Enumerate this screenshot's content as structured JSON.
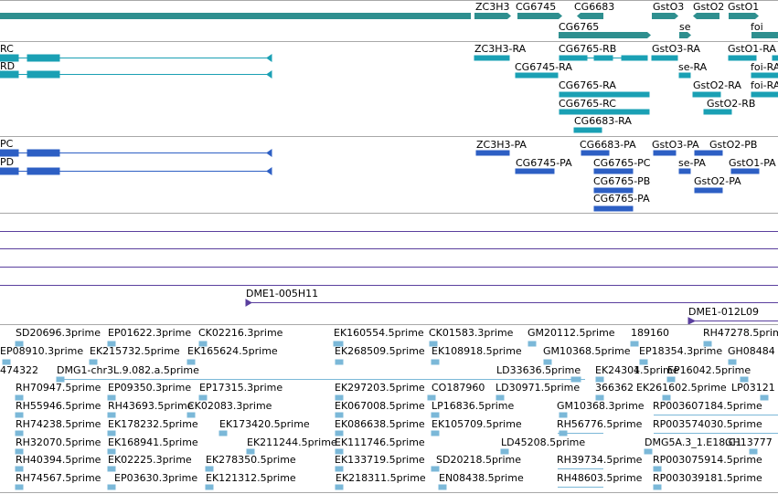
{
  "colors": {
    "gene": "#2e8f8f",
    "transcript_rna": "#1aa0b4",
    "protein": "#2d5fc4",
    "bac": "#5a3f9e",
    "est": "#7bb8d8",
    "divider": "#a8a8a8"
  },
  "gene_track": {
    "labels": [
      "ZC3H3",
      "CG6745",
      "CG6683",
      "GstO3",
      "GstO2",
      "GstO1",
      "CG6765",
      "se",
      "foi"
    ]
  },
  "rna_track": {
    "left_edge_labels": [
      "RC",
      "RD"
    ],
    "labels": [
      "ZC3H3-RA",
      "CG6765-RB",
      "GstO3-RA",
      "GstO1-RA",
      "CG6745-RA",
      "se-RA",
      "foi-RA",
      "CG6765-RA",
      "GstO2-RA",
      "foi-RA",
      "CG6765-RC",
      "GstO2-RB",
      "CG6683-RA"
    ]
  },
  "protein_track": {
    "left_edge_labels": [
      "PC",
      "PD"
    ],
    "labels": [
      "ZC3H3-PA",
      "CG6683-PA",
      "GstO3-PA",
      "GstO2-PB",
      "CG6745-PA",
      "CG6765-PC",
      "se-PA",
      "GstO1-PA",
      "CG6765-PB",
      "GstO2-PA",
      "CG6765-PA"
    ]
  },
  "bac_track": {
    "labels": [
      "DME1-005H11",
      "DME1-012L09"
    ]
  },
  "est_track": {
    "labels": [
      "SD20696.3prime",
      "EP01622.3prime",
      "CK02216.3prime",
      "EK160554.5prime",
      "CK01583.3prime",
      "GM20112.5prime",
      "189160",
      "RH47278.5prime",
      "EP08910.3prime",
      "EK215732.5prime",
      "EK165624.5prime",
      "EK268509.5prime",
      "EK108918.5prime",
      "GM10368.5prime",
      "EP18354.3prime",
      "GH08484",
      "474322",
      "DMG1-chr3L.9.082.a.5prime",
      "LD33636.5prime",
      "EK24301",
      "4.5prime",
      "EP16042.5prime",
      "RH70947.5prime",
      "EP09350.3prime",
      "EP17315.3prime",
      "EK297203.5prime",
      "CO187960",
      "LD30971.5prime",
      "366362",
      "EK261602.5prime",
      "LP03121",
      "RH55946.5prime",
      "RH43693.5prime",
      "CK02083.3prime",
      "EK067008.5prime",
      "LP16836.5prime",
      "GM10368.3prime",
      "RP003607184.5prime",
      "RH74238.5prime",
      "EK178232.5prime",
      "EK173420.5prime",
      "EK086638.5prime",
      "EK105709.5prime",
      "RH56776.5prime",
      "RP003574030.5prime",
      "RH32070.5prime",
      "EK168941.5prime",
      "EK211244.5prime",
      "EK111746.5prime",
      "LD45208.5prime",
      "DMG5A.3_1.E18.C1",
      "GH13777",
      "RH40394.5prime",
      "EK02225.3prime",
      "EK278350.5prime",
      "EK133719.5prime",
      "SD20218.5prime",
      "RH39734.5prime",
      "RP003075914.5prime",
      "RH74567.5prime",
      "EP03630.3prime",
      "EK121312.5prime",
      "EK218311.5prime",
      "EN08438.5prime",
      "RH48603.5prime",
      "RP003039181.5prime"
    ]
  }
}
